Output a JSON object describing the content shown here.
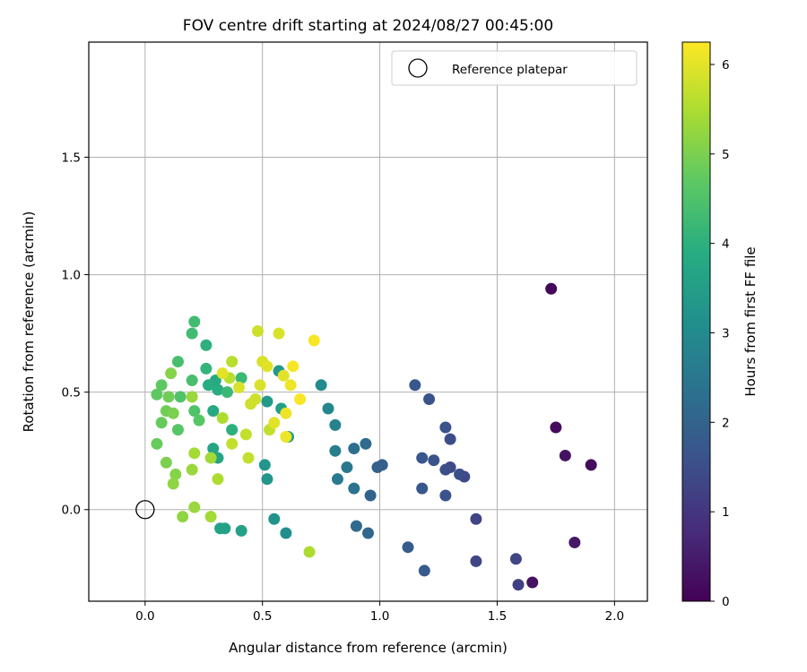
{
  "chart_data": {
    "type": "scatter",
    "title": "FOV centre drift starting at 2024/08/27 00:45:00",
    "xlabel": "Angular distance from reference (arcmin)",
    "ylabel": "Rotation from reference (arcmin)",
    "xlim": [
      -0.24,
      2.14
    ],
    "ylim": [
      -0.39,
      1.99
    ],
    "xticks": [
      0.0,
      0.5,
      1.0,
      1.5,
      2.0
    ],
    "xtick_labels": [
      "0.0",
      "0.5",
      "1.0",
      "1.5",
      "2.0"
    ],
    "yticks": [
      0.0,
      0.5,
      1.0,
      1.5
    ],
    "ytick_labels": [
      "0.0",
      "0.5",
      "1.0",
      "1.5"
    ],
    "grid": true,
    "colormap": "viridis",
    "colorbar": {
      "label": "Hours from first FF file",
      "range": [
        0,
        6.25
      ],
      "ticks": [
        0,
        1,
        2,
        3,
        4,
        5,
        6
      ],
      "tick_labels": [
        "0",
        "1",
        "2",
        "3",
        "4",
        "5",
        "6"
      ]
    },
    "legend": {
      "position": "top-right",
      "entries": [
        "Reference platepar"
      ]
    },
    "reference_point": {
      "x": 0.0,
      "y": 0.0,
      "label": "Reference platepar"
    },
    "points": [
      {
        "x": 1.73,
        "y": 0.94,
        "hours": 0.1
      },
      {
        "x": 1.75,
        "y": 0.35,
        "hours": 0.2
      },
      {
        "x": 1.79,
        "y": 0.23,
        "hours": 0.3
      },
      {
        "x": 1.9,
        "y": 0.19,
        "hours": 0.2
      },
      {
        "x": 1.83,
        "y": -0.14,
        "hours": 0.4
      },
      {
        "x": 1.65,
        "y": -0.31,
        "hours": 0.3
      },
      {
        "x": 1.59,
        "y": -0.32,
        "hours": 1.2
      },
      {
        "x": 1.58,
        "y": -0.21,
        "hours": 1.3
      },
      {
        "x": 1.41,
        "y": -0.22,
        "hours": 1.3
      },
      {
        "x": 1.41,
        "y": -0.04,
        "hours": 1.3
      },
      {
        "x": 1.36,
        "y": 0.14,
        "hours": 1.4
      },
      {
        "x": 1.34,
        "y": 0.15,
        "hours": 1.5
      },
      {
        "x": 1.3,
        "y": 0.18,
        "hours": 1.4
      },
      {
        "x": 1.28,
        "y": 0.17,
        "hours": 1.5
      },
      {
        "x": 1.3,
        "y": 0.3,
        "hours": 1.5
      },
      {
        "x": 1.28,
        "y": 0.35,
        "hours": 1.6
      },
      {
        "x": 1.23,
        "y": 0.21,
        "hours": 1.6
      },
      {
        "x": 1.18,
        "y": 0.22,
        "hours": 1.7
      },
      {
        "x": 1.21,
        "y": 0.47,
        "hours": 1.6
      },
      {
        "x": 1.15,
        "y": 0.53,
        "hours": 1.7
      },
      {
        "x": 1.18,
        "y": 0.09,
        "hours": 1.7
      },
      {
        "x": 1.28,
        "y": 0.06,
        "hours": 1.6
      },
      {
        "x": 1.19,
        "y": -0.26,
        "hours": 1.8
      },
      {
        "x": 1.12,
        "y": -0.16,
        "hours": 1.8
      },
      {
        "x": 1.01,
        "y": 0.19,
        "hours": 1.9
      },
      {
        "x": 0.99,
        "y": 0.18,
        "hours": 1.9
      },
      {
        "x": 0.96,
        "y": 0.06,
        "hours": 2.0
      },
      {
        "x": 0.95,
        "y": -0.1,
        "hours": 2.1
      },
      {
        "x": 0.9,
        "y": -0.07,
        "hours": 2.2
      },
      {
        "x": 0.94,
        "y": 0.28,
        "hours": 2.2
      },
      {
        "x": 0.89,
        "y": 0.26,
        "hours": 2.3
      },
      {
        "x": 0.89,
        "y": 0.09,
        "hours": 2.4
      },
      {
        "x": 0.86,
        "y": 0.18,
        "hours": 2.5
      },
      {
        "x": 0.82,
        "y": 0.13,
        "hours": 2.6
      },
      {
        "x": 0.81,
        "y": 0.25,
        "hours": 2.7
      },
      {
        "x": 0.81,
        "y": 0.36,
        "hours": 2.8
      },
      {
        "x": 0.78,
        "y": 0.43,
        "hours": 2.9
      },
      {
        "x": 0.75,
        "y": 0.53,
        "hours": 3.0
      },
      {
        "x": 0.6,
        "y": -0.1,
        "hours": 3.1
      },
      {
        "x": 0.55,
        "y": -0.04,
        "hours": 3.2
      },
      {
        "x": 0.52,
        "y": 0.13,
        "hours": 3.3
      },
      {
        "x": 0.51,
        "y": 0.19,
        "hours": 3.3
      },
      {
        "x": 0.52,
        "y": 0.46,
        "hours": 3.4
      },
      {
        "x": 0.57,
        "y": 0.59,
        "hours": 3.4
      },
      {
        "x": 0.61,
        "y": 0.31,
        "hours": 3.5
      },
      {
        "x": 0.58,
        "y": 0.43,
        "hours": 3.5
      },
      {
        "x": 0.41,
        "y": -0.09,
        "hours": 3.6
      },
      {
        "x": 0.34,
        "y": -0.08,
        "hours": 3.6
      },
      {
        "x": 0.32,
        "y": -0.08,
        "hours": 3.6
      },
      {
        "x": 0.31,
        "y": 0.22,
        "hours": 3.7
      },
      {
        "x": 0.29,
        "y": 0.26,
        "hours": 3.7
      },
      {
        "x": 0.29,
        "y": 0.42,
        "hours": 3.8
      },
      {
        "x": 0.3,
        "y": 0.55,
        "hours": 3.8
      },
      {
        "x": 0.31,
        "y": 0.51,
        "hours": 3.9
      },
      {
        "x": 0.27,
        "y": 0.53,
        "hours": 3.9
      },
      {
        "x": 0.26,
        "y": 0.7,
        "hours": 4.0
      },
      {
        "x": 0.26,
        "y": 0.6,
        "hours": 4.1
      },
      {
        "x": 0.37,
        "y": 0.34,
        "hours": 4.0
      },
      {
        "x": 0.35,
        "y": 0.5,
        "hours": 4.2
      },
      {
        "x": 0.41,
        "y": 0.56,
        "hours": 4.2
      },
      {
        "x": 0.21,
        "y": 0.8,
        "hours": 4.3
      },
      {
        "x": 0.2,
        "y": 0.75,
        "hours": 4.3
      },
      {
        "x": 0.2,
        "y": 0.55,
        "hours": 4.4
      },
      {
        "x": 0.14,
        "y": 0.63,
        "hours": 4.4
      },
      {
        "x": 0.15,
        "y": 0.48,
        "hours": 4.5
      },
      {
        "x": 0.21,
        "y": 0.42,
        "hours": 4.5
      },
      {
        "x": 0.23,
        "y": 0.38,
        "hours": 4.6
      },
      {
        "x": 0.14,
        "y": 0.34,
        "hours": 4.6
      },
      {
        "x": 0.07,
        "y": 0.53,
        "hours": 4.7
      },
      {
        "x": 0.05,
        "y": 0.49,
        "hours": 4.7
      },
      {
        "x": 0.07,
        "y": 0.37,
        "hours": 4.8
      },
      {
        "x": 0.05,
        "y": 0.28,
        "hours": 4.8
      },
      {
        "x": 0.09,
        "y": 0.42,
        "hours": 4.9
      },
      {
        "x": 0.1,
        "y": 0.48,
        "hours": 4.9
      },
      {
        "x": 0.12,
        "y": 0.41,
        "hours": 5.0
      },
      {
        "x": 0.09,
        "y": 0.2,
        "hours": 5.0
      },
      {
        "x": 0.13,
        "y": 0.15,
        "hours": 5.1
      },
      {
        "x": 0.12,
        "y": 0.11,
        "hours": 5.2
      },
      {
        "x": 0.11,
        "y": 0.58,
        "hours": 5.1
      },
      {
        "x": 0.16,
        "y": -0.03,
        "hours": 5.2
      },
      {
        "x": 0.21,
        "y": 0.01,
        "hours": 5.3
      },
      {
        "x": 0.2,
        "y": 0.17,
        "hours": 5.3
      },
      {
        "x": 0.21,
        "y": 0.24,
        "hours": 5.4
      },
      {
        "x": 0.2,
        "y": 0.48,
        "hours": 5.3
      },
      {
        "x": 0.28,
        "y": 0.22,
        "hours": 5.4
      },
      {
        "x": 0.28,
        "y": -0.03,
        "hours": 5.4
      },
      {
        "x": 0.31,
        "y": 0.13,
        "hours": 5.5
      },
      {
        "x": 0.33,
        "y": 0.39,
        "hours": 5.5
      },
      {
        "x": 0.36,
        "y": 0.56,
        "hours": 5.6
      },
      {
        "x": 0.37,
        "y": 0.63,
        "hours": 5.6
      },
      {
        "x": 0.37,
        "y": 0.28,
        "hours": 5.7
      },
      {
        "x": 0.43,
        "y": 0.32,
        "hours": 5.7
      },
      {
        "x": 0.44,
        "y": 0.22,
        "hours": 5.7
      },
      {
        "x": 0.45,
        "y": 0.45,
        "hours": 5.8
      },
      {
        "x": 0.48,
        "y": 0.76,
        "hours": 5.8
      },
      {
        "x": 0.47,
        "y": 0.47,
        "hours": 5.8
      },
      {
        "x": 0.49,
        "y": 0.53,
        "hours": 5.9
      },
      {
        "x": 0.5,
        "y": 0.63,
        "hours": 5.9
      },
      {
        "x": 0.52,
        "y": 0.61,
        "hours": 6.0
      },
      {
        "x": 0.53,
        "y": 0.34,
        "hours": 5.7
      },
      {
        "x": 0.57,
        "y": 0.75,
        "hours": 5.9
      },
      {
        "x": 0.55,
        "y": 0.37,
        "hours": 6.0
      },
      {
        "x": 0.59,
        "y": 0.57,
        "hours": 6.0
      },
      {
        "x": 0.6,
        "y": 0.41,
        "hours": 6.1
      },
      {
        "x": 0.6,
        "y": 0.31,
        "hours": 6.1
      },
      {
        "x": 0.62,
        "y": 0.53,
        "hours": 6.1
      },
      {
        "x": 0.63,
        "y": 0.61,
        "hours": 6.2
      },
      {
        "x": 0.66,
        "y": 0.47,
        "hours": 6.2
      },
      {
        "x": 0.72,
        "y": 0.72,
        "hours": 6.2
      },
      {
        "x": 0.7,
        "y": -0.18,
        "hours": 5.5
      },
      {
        "x": 0.33,
        "y": 0.58,
        "hours": 6.0
      },
      {
        "x": 0.4,
        "y": 0.52,
        "hours": 5.9
      }
    ]
  }
}
